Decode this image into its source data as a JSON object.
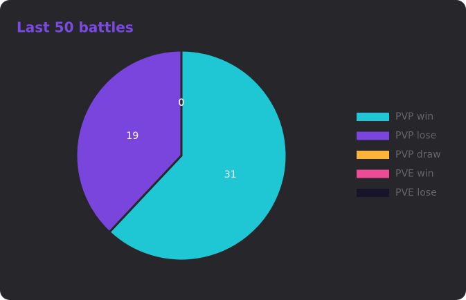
{
  "chart_data": {
    "type": "pie",
    "title": "Last 50 battles",
    "categories": [
      "PVP win",
      "PVP lose",
      "PVP draw",
      "PVE win",
      "PVE lose"
    ],
    "values": [
      31,
      19,
      0,
      0,
      0
    ],
    "colors": [
      "#1fc6d4",
      "#7a45dc",
      "#fdb43a",
      "#ec4b95",
      "#17142a"
    ],
    "legend": "right"
  }
}
